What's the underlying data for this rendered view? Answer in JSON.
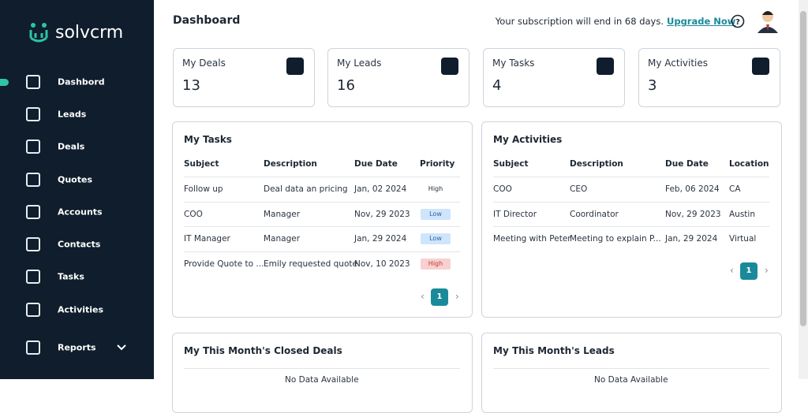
{
  "sidebar": {
    "logo": "solvcrm",
    "nav": [
      "Dashbord",
      "Leads",
      "Deals",
      "Quotes",
      "Accounts",
      "Contacts",
      "Tasks",
      "Activities",
      "Reports"
    ]
  },
  "header": {
    "title": "Dashboard",
    "subscription": "Your subscription will end in 68 days.",
    "upgrade": "Upgrade Now"
  },
  "stats": [
    {
      "label": "My Deals",
      "value": 13
    },
    {
      "label": "My Leads",
      "value": 16
    },
    {
      "label": "My Tasks",
      "value": 4
    },
    {
      "label": "My Activities",
      "value": 3
    }
  ],
  "tasks": {
    "title": "My Tasks",
    "columns": [
      "Subject",
      "Description",
      "Due Date",
      "Priority"
    ],
    "rows": [
      [
        "Follow up",
        "Deal data an pricing",
        "Jan, 02 2024",
        "High"
      ],
      [
        "COO",
        "Manager",
        "Nov, 29 2023",
        "Low"
      ],
      [
        "IT Manager",
        "Manager",
        "Jan, 29 2024",
        "Low"
      ],
      [
        "Provide Quote to ...",
        "Emily requested quote",
        "Nov, 10 2023",
        "High"
      ]
    ],
    "page": 1
  },
  "activities": {
    "title": "My Activities",
    "columns": [
      "Subject",
      "Description",
      "Due Date",
      "Location"
    ],
    "rows": [
      [
        "COO",
        "CEO",
        "Feb, 06 2024",
        "CA"
      ],
      [
        "IT Director",
        "Coordinator",
        "Nov, 29 2023",
        "Austin"
      ],
      [
        "Meeting with Peter",
        "Meeting to explain P...",
        "Jan, 29 2024",
        "Virtual"
      ]
    ],
    "page": 1
  },
  "closed_deals": {
    "title": "My This Month's Closed Deals",
    "empty": "No Data Available"
  },
  "month_leads": {
    "title": "My This Month's Leads",
    "empty": "No Data Available"
  }
}
